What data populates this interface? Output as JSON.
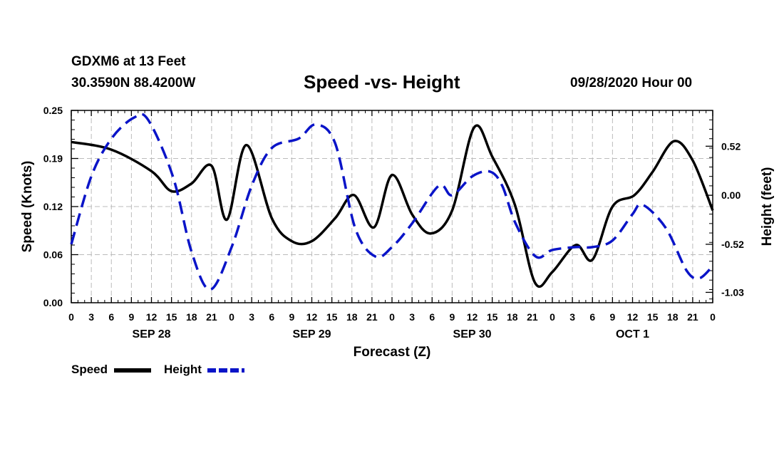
{
  "header": {
    "station": "GDXM6 at 13 Feet",
    "coords": "30.3590N 88.4200W",
    "title": "Speed -vs- Height",
    "datetime": "09/28/2020 Hour 00"
  },
  "legend": {
    "speed": "Speed",
    "height": "Height"
  },
  "colors": {
    "speed": "#000000",
    "height": "#0a14c8",
    "grid": "#bbbbbb"
  },
  "chart_data": {
    "type": "line",
    "title": "Speed -vs- Height",
    "xlabel": "Forecast (Z)",
    "ylabel_left": "Speed (Knots)",
    "ylabel_right": "Height (feet)",
    "x_range_hours": [
      0,
      96
    ],
    "x_ticks": [
      {
        "h": 0,
        "label": "0"
      },
      {
        "h": 3,
        "label": "3"
      },
      {
        "h": 6,
        "label": "6"
      },
      {
        "h": 9,
        "label": "9"
      },
      {
        "h": 12,
        "label": "12"
      },
      {
        "h": 15,
        "label": "15"
      },
      {
        "h": 18,
        "label": "18"
      },
      {
        "h": 21,
        "label": "21"
      },
      {
        "h": 24,
        "label": "0"
      },
      {
        "h": 27,
        "label": "3"
      },
      {
        "h": 30,
        "label": "6"
      },
      {
        "h": 33,
        "label": "9"
      },
      {
        "h": 36,
        "label": "12"
      },
      {
        "h": 39,
        "label": "15"
      },
      {
        "h": 42,
        "label": "18"
      },
      {
        "h": 45,
        "label": "21"
      },
      {
        "h": 48,
        "label": "0"
      },
      {
        "h": 51,
        "label": "3"
      },
      {
        "h": 54,
        "label": "6"
      },
      {
        "h": 57,
        "label": "9"
      },
      {
        "h": 60,
        "label": "12"
      },
      {
        "h": 63,
        "label": "15"
      },
      {
        "h": 66,
        "label": "18"
      },
      {
        "h": 69,
        "label": "21"
      },
      {
        "h": 72,
        "label": "0"
      },
      {
        "h": 75,
        "label": "3"
      },
      {
        "h": 78,
        "label": "6"
      },
      {
        "h": 81,
        "label": "9"
      },
      {
        "h": 84,
        "label": "12"
      },
      {
        "h": 87,
        "label": "15"
      },
      {
        "h": 90,
        "label": "18"
      },
      {
        "h": 93,
        "label": "21"
      },
      {
        "h": 96,
        "label": "0"
      }
    ],
    "day_labels": [
      {
        "h": 12,
        "label": "SEP 28"
      },
      {
        "h": 36,
        "label": "SEP 29"
      },
      {
        "h": 60,
        "label": "SEP 30"
      },
      {
        "h": 84,
        "label": "OCT 1"
      }
    ],
    "y_left": {
      "min": 0.0,
      "max": 0.25,
      "ticks": [
        {
          "v": 0.0,
          "label": "0.00"
        },
        {
          "v": 0.0625,
          "label": "0.06"
        },
        {
          "v": 0.125,
          "label": "0.12"
        },
        {
          "v": 0.1875,
          "label": "0.19"
        },
        {
          "v": 0.25,
          "label": "0.25"
        }
      ]
    },
    "y_right": {
      "min": -1.14,
      "max": 0.9,
      "ticks": [
        {
          "v": 0.52,
          "label": "0.52"
        },
        {
          "v": 0.0,
          "label": "0.00"
        },
        {
          "v": -0.52,
          "label": "-0.52"
        },
        {
          "v": -1.03,
          "label": "-1.03"
        }
      ]
    },
    "series": [
      {
        "name": "Speed",
        "axis": "left",
        "points": [
          [
            0,
            0.209
          ],
          [
            6,
            0.199
          ],
          [
            12,
            0.171
          ],
          [
            15,
            0.145
          ],
          [
            18,
            0.155
          ],
          [
            21,
            0.178
          ],
          [
            23.3,
            0.108
          ],
          [
            26.2,
            0.205
          ],
          [
            30,
            0.11
          ],
          [
            33,
            0.08
          ],
          [
            36,
            0.08
          ],
          [
            39.5,
            0.11
          ],
          [
            42.3,
            0.14
          ],
          [
            45.3,
            0.098
          ],
          [
            48,
            0.166
          ],
          [
            51,
            0.115
          ],
          [
            53.8,
            0.09
          ],
          [
            57,
            0.12
          ],
          [
            60.3,
            0.228
          ],
          [
            63,
            0.19
          ],
          [
            66.4,
            0.127
          ],
          [
            69.4,
            0.026
          ],
          [
            72,
            0.04
          ],
          [
            75.5,
            0.075
          ],
          [
            78,
            0.056
          ],
          [
            81,
            0.125
          ],
          [
            84.3,
            0.14
          ],
          [
            87,
            0.17
          ],
          [
            90.2,
            0.21
          ],
          [
            93,
            0.185
          ],
          [
            96,
            0.12
          ]
        ]
      },
      {
        "name": "Height",
        "axis": "right",
        "points": [
          [
            0,
            -0.52
          ],
          [
            3,
            0.2
          ],
          [
            6,
            0.6
          ],
          [
            9.3,
            0.82
          ],
          [
            11.5,
            0.8
          ],
          [
            15.2,
            0.2
          ],
          [
            18,
            -0.6
          ],
          [
            20.8,
            -1.0
          ],
          [
            24,
            -0.55
          ],
          [
            27,
            0.1
          ],
          [
            30,
            0.5
          ],
          [
            34,
            0.6
          ],
          [
            36.6,
            0.75
          ],
          [
            39.5,
            0.55
          ],
          [
            42.5,
            -0.35
          ],
          [
            45.5,
            -0.65
          ],
          [
            48,
            -0.55
          ],
          [
            51,
            -0.3
          ],
          [
            55,
            0.1
          ],
          [
            57,
            0.0
          ],
          [
            60,
            0.2
          ],
          [
            62.7,
            0.25
          ],
          [
            64.5,
            0.1
          ],
          [
            66.5,
            -0.3
          ],
          [
            69.5,
            -0.65
          ],
          [
            72,
            -0.58
          ],
          [
            75.5,
            -0.55
          ],
          [
            78,
            -0.55
          ],
          [
            81,
            -0.48
          ],
          [
            84,
            -0.2
          ],
          [
            85.5,
            -0.1
          ],
          [
            89,
            -0.35
          ],
          [
            92.1,
            -0.8
          ],
          [
            94,
            -0.88
          ],
          [
            96,
            -0.75
          ]
        ]
      }
    ]
  }
}
